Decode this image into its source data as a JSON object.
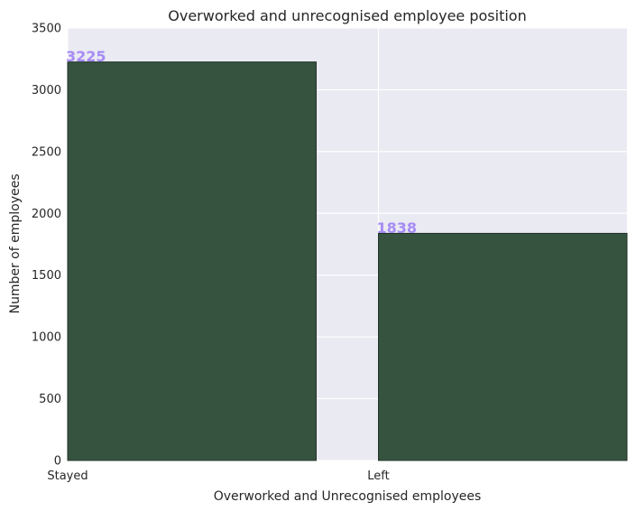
{
  "chart_data": {
    "type": "bar",
    "title": "Overworked and unrecognised employee position",
    "xlabel": "Overworked and Unrecognised employees",
    "ylabel": "Number of employees",
    "categories": [
      "Stayed",
      "Left"
    ],
    "values": [
      3225,
      1838
    ],
    "data_labels": [
      "3225",
      "1838"
    ],
    "ylim": [
      0,
      3500
    ],
    "yticks": [
      0,
      500,
      1000,
      1500,
      2000,
      2500,
      3000,
      3500
    ],
    "ytick_labels": [
      "0",
      "500",
      "1000",
      "1500",
      "2000",
      "2500",
      "3000",
      "3500"
    ],
    "grid": true,
    "legend": "none",
    "colors": {
      "bar": "#35533F",
      "bar_edge": "#22332a",
      "plot_background": "#EAEAF2",
      "grid": "#ffffff",
      "data_label": "#A68CF5"
    }
  }
}
